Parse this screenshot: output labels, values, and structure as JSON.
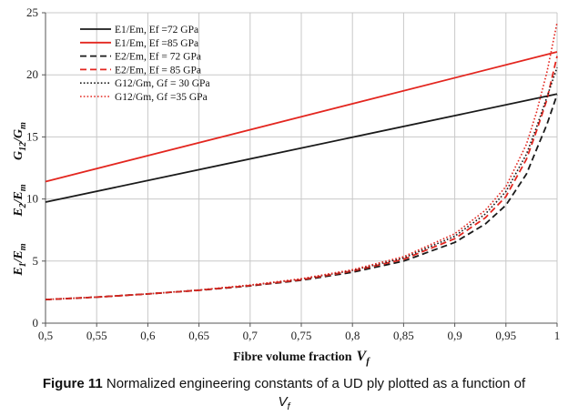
{
  "chart_data": {
    "type": "line",
    "xlabel": "Fibre volume fraction",
    "xlabel_symbol": "V",
    "xlabel_sub": "f",
    "ylabel_parts": [
      {
        "num": "E",
        "num_sub": "1",
        "den": "E",
        "den_sub": "m"
      },
      {
        "num": "E",
        "num_sub": "2",
        "den": "E",
        "den_sub": "m"
      },
      {
        "num": "G",
        "num_sub": "12",
        "den": "G",
        "den_sub": "m"
      }
    ],
    "xlim": [
      0.5,
      1.0
    ],
    "ylim": [
      0,
      25
    ],
    "xticks": [
      0.5,
      0.55,
      0.6,
      0.65,
      0.7,
      0.75,
      0.8,
      0.85,
      0.9,
      0.95,
      1.0
    ],
    "xtick_labels": [
      "0,5",
      "0,55",
      "0,6",
      "0,65",
      "0,7",
      "0,75",
      "0,8",
      "0,85",
      "0,9",
      "0,95",
      "1"
    ],
    "yticks": [
      0,
      5,
      10,
      15,
      20,
      25
    ],
    "ytick_labels": [
      "0",
      "5",
      "10",
      "15",
      "20",
      "25"
    ],
    "grid": true,
    "legend_position": "top-left",
    "series": [
      {
        "name": "E1/Em, Ef =72 GPa",
        "color": "#1a1a1a",
        "dash": "solid",
        "x": [
          0.5,
          1.0
        ],
        "y": [
          9.75,
          18.45
        ]
      },
      {
        "name": "E1/Em, Ef =85 GPa",
        "color": "#e3261f",
        "dash": "solid",
        "x": [
          0.5,
          1.0
        ],
        "y": [
          11.4,
          21.85
        ]
      },
      {
        "name": "E2/Em, Ef = 72 GPa",
        "color": "#1a1a1a",
        "dash": "dash",
        "x": [
          0.5,
          0.55,
          0.6,
          0.65,
          0.7,
          0.75,
          0.8,
          0.85,
          0.9,
          0.93,
          0.95,
          0.97,
          0.98,
          0.99,
          1.0
        ],
        "y": [
          1.9,
          2.1,
          2.35,
          2.65,
          3.0,
          3.45,
          4.1,
          5.0,
          6.5,
          8.0,
          9.5,
          12.0,
          14.0,
          16.0,
          18.4
        ]
      },
      {
        "name": "E2/Em, Ef = 85 GPa",
        "color": "#e3261f",
        "dash": "dash",
        "x": [
          0.5,
          0.55,
          0.6,
          0.65,
          0.7,
          0.75,
          0.8,
          0.85,
          0.9,
          0.93,
          0.95,
          0.97,
          0.98,
          0.99,
          1.0
        ],
        "y": [
          1.9,
          2.1,
          2.35,
          2.65,
          3.02,
          3.5,
          4.2,
          5.15,
          6.8,
          8.5,
          10.2,
          13.2,
          15.5,
          18.0,
          21.5
        ]
      },
      {
        "name": "G12/Gm, Gf = 30 GPa",
        "color": "#1a1a1a",
        "dash": "dot",
        "x": [
          0.5,
          0.55,
          0.6,
          0.65,
          0.7,
          0.75,
          0.8,
          0.85,
          0.9,
          0.93,
          0.95,
          0.97,
          0.98,
          0.99,
          1.0
        ],
        "y": [
          1.9,
          2.1,
          2.35,
          2.67,
          3.05,
          3.55,
          4.25,
          5.25,
          7.0,
          8.8,
          10.6,
          13.6,
          15.8,
          18.2,
          20.6
        ]
      },
      {
        "name": "G12/Gm, Gf =35 GPa",
        "color": "#e3261f",
        "dash": "dot",
        "x": [
          0.5,
          0.55,
          0.6,
          0.65,
          0.7,
          0.75,
          0.8,
          0.85,
          0.9,
          0.93,
          0.95,
          0.97,
          0.98,
          0.99,
          1.0
        ],
        "y": [
          1.9,
          2.1,
          2.35,
          2.67,
          3.07,
          3.58,
          4.3,
          5.35,
          7.2,
          9.1,
          11.0,
          14.4,
          17.0,
          20.2,
          24.2
        ]
      }
    ]
  },
  "caption": {
    "label": "Figure 11",
    "text": " Normalized engineering constants of a UD ply plotted as a function of",
    "symbol": "V",
    "symbol_sub": "f"
  }
}
